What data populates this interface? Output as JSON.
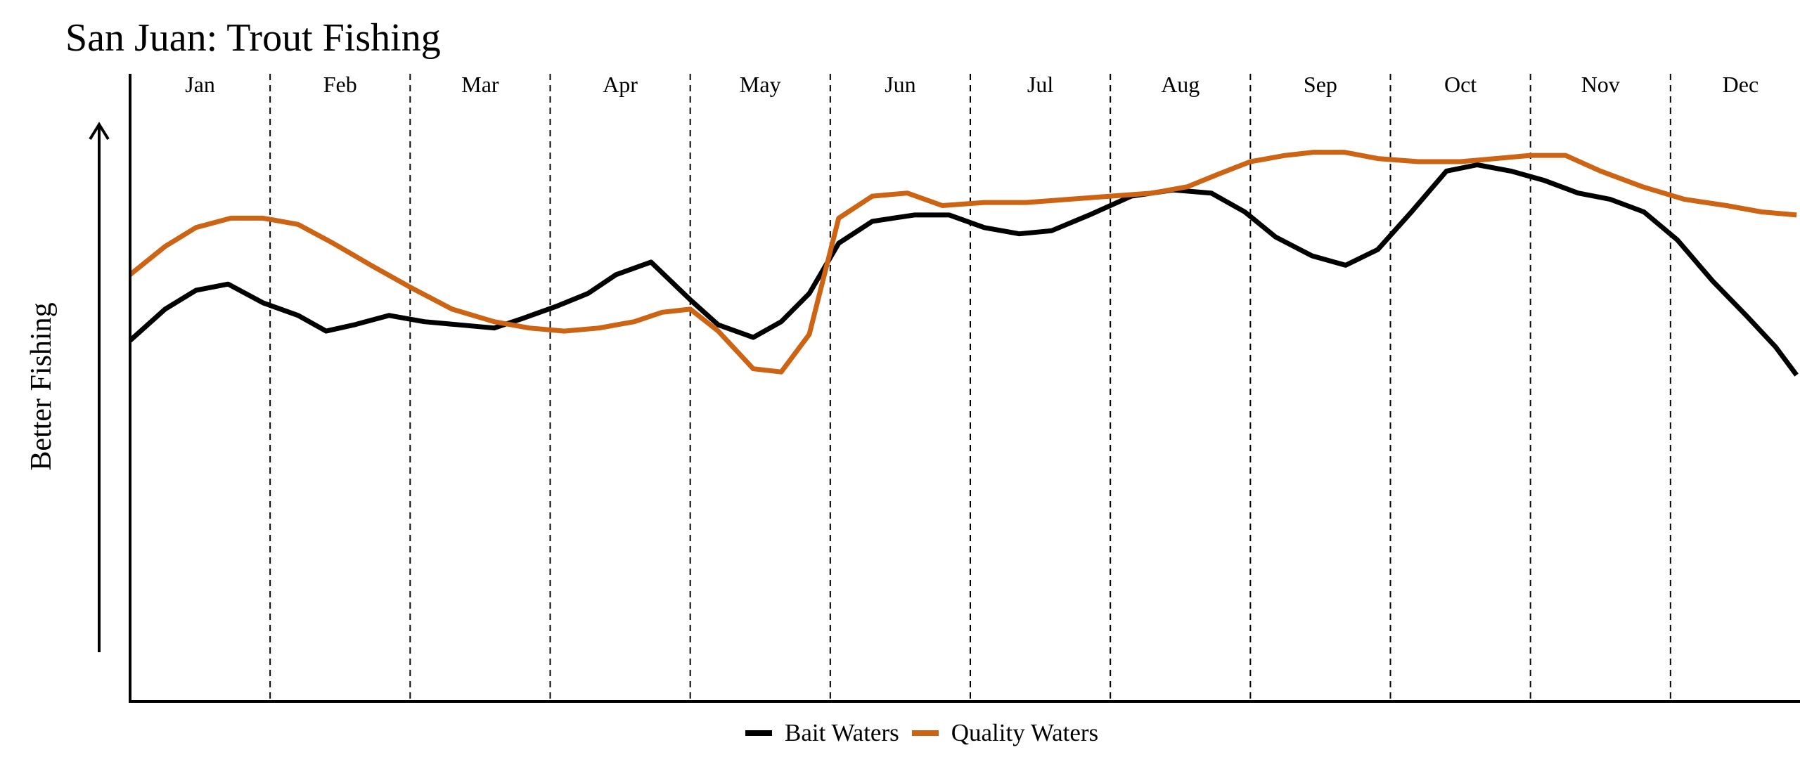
{
  "chart_data": {
    "type": "line",
    "title": "San Juan: Trout Fishing",
    "xlabel": "",
    "ylabel": "Better Fishing",
    "months": [
      "Jan",
      "Feb",
      "Mar",
      "Apr",
      "May",
      "Jun",
      "Jul",
      "Aug",
      "Sep",
      "Oct",
      "Nov",
      "Dec"
    ],
    "month_boundaries": [
      0,
      1,
      2,
      3,
      4,
      5,
      6,
      7,
      8,
      9,
      10,
      11,
      12
    ],
    "xlim": [
      0,
      12
    ],
    "ylim": [
      0,
      100
    ],
    "grid": false,
    "legend_position": "bottom-center",
    "series": [
      {
        "name": "Bait Waters",
        "color": "#000000",
        "x": [
          0.0,
          0.25,
          0.47,
          0.7,
          0.95,
          1.2,
          1.4,
          1.6,
          1.85,
          2.1,
          2.35,
          2.6,
          2.8,
          3.05,
          3.27,
          3.47,
          3.72,
          4.0,
          4.2,
          4.45,
          4.65,
          4.85,
          5.06,
          5.3,
          5.6,
          5.85,
          6.1,
          6.35,
          6.58,
          6.85,
          7.15,
          7.45,
          7.72,
          7.96,
          8.18,
          8.44,
          8.68,
          8.91,
          9.15,
          9.4,
          9.62,
          9.86,
          10.1,
          10.34,
          10.57,
          10.81,
          11.05,
          11.3,
          11.54,
          11.75,
          11.9
        ],
        "y": [
          57.5,
          62.5,
          65.5,
          66.5,
          63.5,
          61.5,
          59.0,
          60.0,
          61.5,
          60.5,
          60.0,
          59.5,
          61.0,
          63.0,
          65.0,
          68.0,
          70.0,
          64.0,
          60.0,
          58.0,
          60.5,
          65.0,
          73.0,
          76.5,
          77.5,
          77.5,
          75.5,
          74.5,
          75.0,
          77.5,
          80.5,
          81.5,
          81.0,
          78.0,
          74.0,
          71.0,
          69.5,
          72.0,
          78.0,
          84.5,
          85.5,
          84.5,
          83.0,
          81.0,
          80.0,
          78.0,
          73.5,
          67.0,
          61.5,
          56.5,
          52.0
        ]
      },
      {
        "name": "Quality Waters",
        "color": "#cc6414",
        "x": [
          0.0,
          0.25,
          0.47,
          0.72,
          0.95,
          1.2,
          1.45,
          1.72,
          2.0,
          2.3,
          2.6,
          2.85,
          3.1,
          3.35,
          3.6,
          3.8,
          4.0,
          4.2,
          4.45,
          4.65,
          4.85,
          5.06,
          5.3,
          5.55,
          5.8,
          6.1,
          6.4,
          6.7,
          7.0,
          7.3,
          7.55,
          7.77,
          8.0,
          8.25,
          8.45,
          8.67,
          8.91,
          9.2,
          9.5,
          9.75,
          10.0,
          10.25,
          10.5,
          10.8,
          11.1,
          11.4,
          11.65,
          11.9
        ],
        "y": [
          68.0,
          72.5,
          75.5,
          77.0,
          77.0,
          76.0,
          73.0,
          69.5,
          66.0,
          62.5,
          60.5,
          59.5,
          59.0,
          59.5,
          60.5,
          62.0,
          62.5,
          59.0,
          53.0,
          52.5,
          58.5,
          77.0,
          80.5,
          81.0,
          79.0,
          79.5,
          79.5,
          80.0,
          80.5,
          81.0,
          82.0,
          84.0,
          86.0,
          87.0,
          87.5,
          87.5,
          86.5,
          86.0,
          86.0,
          86.5,
          87.0,
          87.0,
          84.5,
          82.0,
          80.0,
          79.0,
          78.0,
          77.5
        ]
      }
    ]
  }
}
